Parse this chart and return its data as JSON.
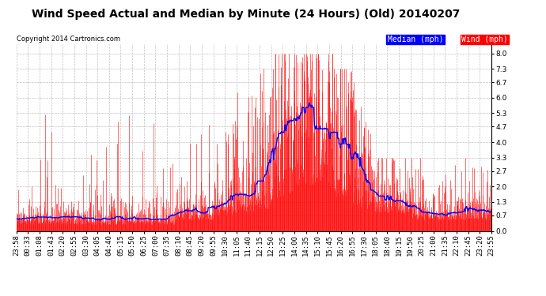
{
  "title": "Wind Speed Actual and Median by Minute (24 Hours) (Old) 20140207",
  "copyright": "Copyright 2014 Cartronics.com",
  "legend_median_label": "Median (mph)",
  "legend_wind_label": "Wind (mph)",
  "legend_median_color": "#0000FF",
  "legend_wind_bg_color": "#FF0000",
  "yticks": [
    0.0,
    0.7,
    1.3,
    2.0,
    2.7,
    3.3,
    4.0,
    4.7,
    5.3,
    6.0,
    6.7,
    7.3,
    8.0
  ],
  "ylim": [
    0.0,
    8.4
  ],
  "bar_color": "#FF0000",
  "median_color": "#0000FF",
  "background_color": "#FFFFFF",
  "grid_color": "#C0C0C0",
  "title_fontsize": 10,
  "tick_fontsize": 6.5,
  "x_tick_labels": [
    "23:58",
    "00:33",
    "01:08",
    "01:43",
    "02:20",
    "02:55",
    "03:30",
    "04:05",
    "04:40",
    "05:15",
    "05:50",
    "06:25",
    "07:00",
    "07:35",
    "08:10",
    "08:45",
    "09:20",
    "09:55",
    "10:30",
    "11:05",
    "11:40",
    "12:15",
    "12:50",
    "13:25",
    "14:00",
    "14:35",
    "15:10",
    "15:45",
    "16:20",
    "16:55",
    "17:30",
    "18:05",
    "18:40",
    "19:15",
    "19:50",
    "20:25",
    "21:00",
    "21:35",
    "22:10",
    "22:45",
    "23:20",
    "23:55"
  ]
}
